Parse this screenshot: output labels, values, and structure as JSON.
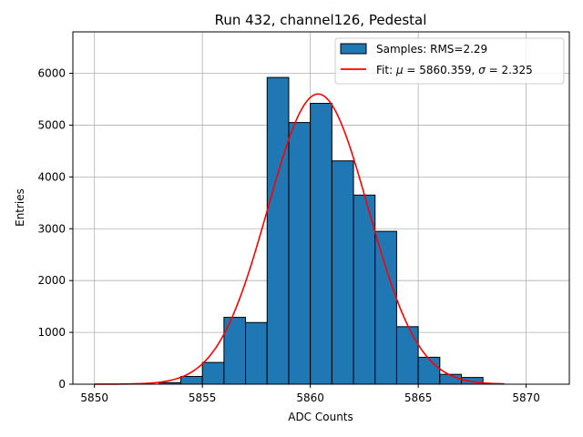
{
  "chart_data": {
    "type": "bar",
    "title": "Run 432, channel126, Pedestal",
    "xlabel": "ADC Counts",
    "ylabel": "Entries",
    "xlim": [
      5849.0,
      5872.0
    ],
    "ylim": [
      0,
      6800
    ],
    "xticks": [
      5850,
      5855,
      5860,
      5865,
      5870
    ],
    "yticks": [
      0,
      1000,
      2000,
      3000,
      4000,
      5000,
      6000
    ],
    "grid": true,
    "legend_position": "top-right",
    "histogram": {
      "name": "Samples: RMS=2.29",
      "color": "#1f77b4",
      "edge_color": "#000000",
      "bins": [
        {
          "x0": 5853.0,
          "x1": 5854.0,
          "value": 30
        },
        {
          "x0": 5854.0,
          "x1": 5855.0,
          "value": 150
        },
        {
          "x0": 5855.0,
          "x1": 5856.0,
          "value": 420
        },
        {
          "x0": 5856.0,
          "x1": 5857.0,
          "value": 1290
        },
        {
          "x0": 5857.0,
          "x1": 5858.0,
          "value": 1190
        },
        {
          "x0": 5858.0,
          "x1": 5859.0,
          "value": 5920
        },
        {
          "x0": 5859.0,
          "x1": 5860.0,
          "value": 5050
        },
        {
          "x0": 5860.0,
          "x1": 5861.0,
          "value": 5420
        },
        {
          "x0": 5861.0,
          "x1": 5862.0,
          "value": 4310
        },
        {
          "x0": 5862.0,
          "x1": 5863.0,
          "value": 3650
        },
        {
          "x0": 5863.0,
          "x1": 5864.0,
          "value": 2950
        },
        {
          "x0": 5864.0,
          "x1": 5865.0,
          "value": 1110
        },
        {
          "x0": 5865.0,
          "x1": 5866.0,
          "value": 520
        },
        {
          "x0": 5866.0,
          "x1": 5867.0,
          "value": 190
        },
        {
          "x0": 5867.0,
          "x1": 5868.0,
          "value": 130
        }
      ]
    },
    "fit": {
      "name": "Fit: μ = 5860.359, σ = 2.325",
      "name_parts": [
        "Fit: ",
        "μ",
        " = 5860.359, ",
        "σ",
        " = 2.325"
      ],
      "color": "#ff0000",
      "mu": 5860.359,
      "sigma": 2.325,
      "amplitude": 5600,
      "x_range": [
        5850,
        5869
      ]
    }
  }
}
